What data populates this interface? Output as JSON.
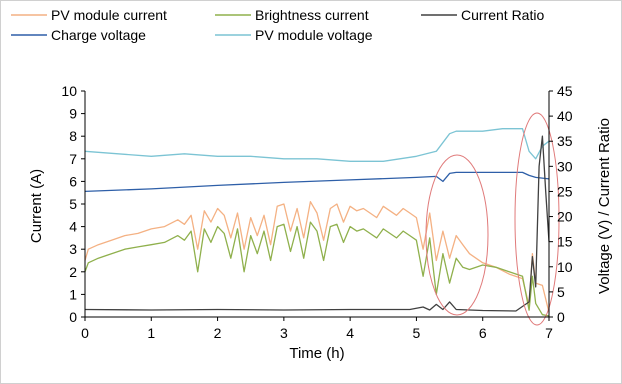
{
  "chart_data": {
    "type": "line",
    "xlabel": "Time (h)",
    "ylabel_left": "Current (A)",
    "ylabel_right": "Voltage (V) / Current Ratio",
    "xlim": [
      0,
      7
    ],
    "ylim_left": [
      0,
      10
    ],
    "ylim_right": [
      0,
      45
    ],
    "x_ticks": [
      "0",
      "1",
      "2",
      "3",
      "4",
      "5",
      "6",
      "7"
    ],
    "y_left_ticks": [
      "0",
      "1",
      "2",
      "3",
      "4",
      "5",
      "6",
      "7",
      "8",
      "9",
      "10"
    ],
    "y_right_ticks": [
      "0",
      "5",
      "10",
      "15",
      "20",
      "25",
      "30",
      "35",
      "40",
      "45"
    ],
    "grid": false,
    "legend_position": "top",
    "series": [
      {
        "name": "PV module current",
        "axis": "left",
        "color": "#f4b183",
        "x": [
          0,
          0.05,
          0.2,
          0.4,
          0.6,
          0.8,
          1.0,
          1.2,
          1.4,
          1.5,
          1.6,
          1.7,
          1.8,
          1.9,
          2.0,
          2.1,
          2.2,
          2.3,
          2.4,
          2.5,
          2.6,
          2.7,
          2.8,
          2.9,
          3.0,
          3.1,
          3.2,
          3.3,
          3.4,
          3.5,
          3.6,
          3.7,
          3.8,
          3.9,
          4.0,
          4.1,
          4.2,
          4.3,
          4.4,
          4.5,
          4.6,
          4.7,
          4.8,
          4.9,
          5.0,
          5.1,
          5.2,
          5.3,
          5.4,
          5.5,
          5.6,
          5.7,
          5.8,
          6.0,
          6.2,
          6.4,
          6.6,
          6.7,
          6.75,
          6.8,
          6.9,
          7.0
        ],
        "y": [
          2.5,
          3.0,
          3.2,
          3.4,
          3.6,
          3.7,
          3.9,
          4.0,
          4.3,
          4.1,
          4.5,
          3.0,
          4.7,
          4.2,
          4.8,
          4.5,
          3.5,
          4.6,
          3.0,
          4.4,
          3.6,
          4.5,
          3.2,
          4.9,
          5.0,
          3.8,
          4.8,
          3.5,
          5.1,
          4.6,
          3.4,
          4.8,
          5.0,
          4.2,
          4.9,
          4.7,
          4.8,
          4.6,
          4.4,
          4.9,
          4.7,
          4.5,
          4.8,
          4.6,
          4.4,
          3.0,
          4.6,
          2.5,
          3.8,
          2.6,
          3.6,
          3.2,
          2.8,
          2.4,
          2.2,
          1.9,
          1.7,
          0.5,
          2.8,
          1.5,
          1.4,
          0.2
        ]
      },
      {
        "name": "Brightness current",
        "axis": "left",
        "color": "#8fb04c",
        "x": [
          0,
          0.05,
          0.2,
          0.4,
          0.6,
          0.8,
          1.0,
          1.2,
          1.4,
          1.5,
          1.6,
          1.7,
          1.8,
          1.9,
          2.0,
          2.1,
          2.2,
          2.3,
          2.4,
          2.5,
          2.6,
          2.7,
          2.8,
          2.9,
          3.0,
          3.1,
          3.2,
          3.3,
          3.4,
          3.5,
          3.6,
          3.7,
          3.8,
          3.9,
          4.0,
          4.1,
          4.2,
          4.3,
          4.4,
          4.5,
          4.6,
          4.7,
          4.8,
          4.9,
          5.0,
          5.1,
          5.2,
          5.3,
          5.4,
          5.5,
          5.6,
          5.7,
          5.8,
          6.0,
          6.2,
          6.4,
          6.6,
          6.7,
          6.75,
          6.8,
          6.9,
          7.0
        ],
        "y": [
          2.0,
          2.4,
          2.6,
          2.8,
          3.0,
          3.1,
          3.2,
          3.3,
          3.6,
          3.4,
          3.8,
          2.0,
          3.9,
          3.3,
          4.0,
          3.7,
          2.6,
          3.9,
          2.0,
          3.6,
          2.8,
          3.8,
          2.5,
          4.0,
          4.1,
          2.9,
          4.0,
          2.6,
          4.2,
          3.8,
          2.5,
          4.0,
          4.1,
          3.3,
          4.0,
          3.8,
          3.9,
          3.7,
          3.5,
          3.9,
          3.7,
          3.5,
          3.8,
          3.6,
          3.4,
          1.8,
          3.5,
          1.0,
          2.8,
          1.5,
          2.6,
          2.2,
          2.1,
          2.3,
          2.2,
          2.0,
          1.8,
          0.3,
          1.8,
          0.6,
          0.1,
          0.05
        ]
      },
      {
        "name": "Current Ratio",
        "axis": "right",
        "color": "#404040",
        "x": [
          0,
          1,
          2,
          3,
          4,
          4.9,
          5.1,
          5.2,
          5.3,
          5.4,
          5.5,
          5.6,
          6.0,
          6.5,
          6.7,
          6.75,
          6.8,
          6.85,
          6.9,
          6.95,
          7.0
        ],
        "y": [
          1.5,
          1.4,
          1.5,
          1.4,
          1.5,
          1.5,
          2.0,
          1.4,
          2.5,
          1.5,
          3.0,
          1.5,
          1.3,
          1.2,
          3.0,
          12.0,
          6.0,
          30.0,
          36.0,
          25.0,
          15.0
        ]
      },
      {
        "name": "Charge voltage",
        "axis": "right",
        "color": "#2e5fa8",
        "x": [
          0,
          1,
          2,
          3,
          4,
          5,
          5.3,
          5.4,
          5.5,
          5.6,
          6.0,
          6.5,
          6.6,
          6.7,
          6.8,
          7.0
        ],
        "y": [
          25.0,
          25.5,
          26.2,
          26.8,
          27.3,
          27.8,
          28.0,
          27.0,
          28.6,
          28.8,
          28.8,
          28.8,
          28.8,
          28.2,
          27.8,
          27.5
        ]
      },
      {
        "name": "PV module voltage",
        "axis": "right",
        "color": "#7cc4d4",
        "x": [
          0,
          0.5,
          1.0,
          1.5,
          2.0,
          2.5,
          3.0,
          3.5,
          4.0,
          4.5,
          5.0,
          5.3,
          5.5,
          5.6,
          5.8,
          6.0,
          6.3,
          6.5,
          6.6,
          6.7,
          6.8,
          6.9,
          7.0
        ],
        "y": [
          33.0,
          32.5,
          32.0,
          32.5,
          32.0,
          32.0,
          31.5,
          31.5,
          31.0,
          31.0,
          32.0,
          33.0,
          36.5,
          37.0,
          37.0,
          37.0,
          37.5,
          37.5,
          37.5,
          33.0,
          31.5,
          34.0,
          35.0
        ]
      }
    ]
  }
}
